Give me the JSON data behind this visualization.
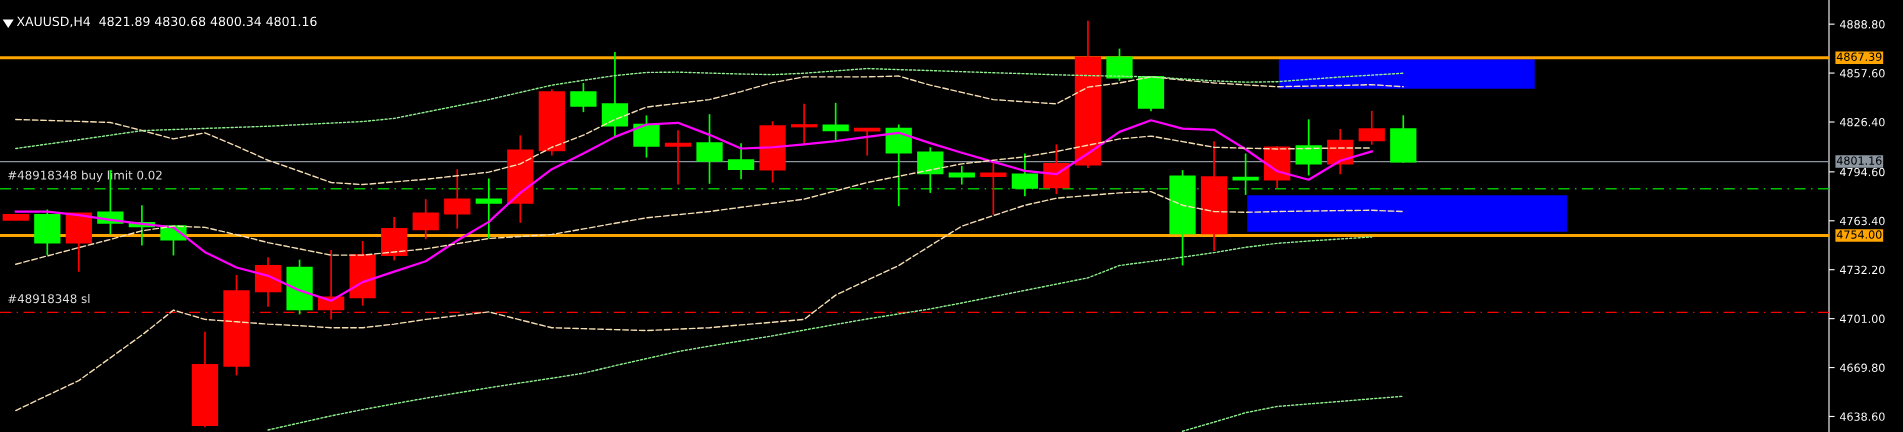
{
  "chart_data": {
    "type": "candlestick",
    "title": "XAUUSD,H4  4821.89 4830.68 4800.34 4801.16",
    "categories": [
      null,
      null,
      null,
      null,
      null,
      null,
      null,
      null,
      null,
      null,
      null,
      null,
      null,
      null,
      null,
      null,
      null,
      null,
      null,
      null,
      null,
      null,
      null,
      null,
      null,
      null,
      null,
      null,
      null,
      null,
      null,
      null,
      null,
      null,
      null,
      null,
      null,
      null,
      null,
      null,
      null,
      null,
      null,
      null,
      null,
      null,
      null,
      null,
      null,
      null,
      null,
      null,
      null,
      null,
      null,
      null,
      null,
      null
    ],
    "ohlc": [
      [
        4764.0,
        4767.2,
        4764.0,
        4767.2
      ],
      [
        4767.2,
        4770.6,
        4741.5,
        4749.5
      ],
      [
        4749.5,
        4768.2,
        4730.9,
        4768.2
      ],
      [
        4768.8,
        4795.7,
        4754.7,
        4762.1
      ],
      [
        4762.1,
        4773.3,
        4747.6,
        4759.8
      ],
      [
        4760.0,
        4760.0,
        4741.3,
        4751.3
      ],
      [
        4633.1,
        4692.6,
        4631.8,
        4671.5
      ],
      [
        4670.9,
        4728.8,
        4664.8,
        4718.5
      ],
      [
        4718.3,
        4740.2,
        4708.5,
        4734.7
      ],
      [
        4733.6,
        4738.6,
        4703.7,
        4706.9
      ],
      [
        4706.9,
        4744.7,
        4700.5,
        4714.6
      ],
      [
        4714.6,
        4750.5,
        4709.3,
        4741.5
      ],
      [
        4741.5,
        4765.8,
        4738.1,
        4758.2
      ],
      [
        4757.9,
        4777.2,
        4751.6,
        4768.2
      ],
      [
        4768.0,
        4796.3,
        4758.4,
        4777.0
      ],
      [
        4777.0,
        4790.4,
        4752.1,
        4774.8
      ],
      [
        4774.8,
        4817.9,
        4762.1,
        4808.4
      ],
      [
        4808.2,
        4847.3,
        4805.0,
        4845.4
      ],
      [
        4845.4,
        4851.3,
        4832.7,
        4836.7
      ],
      [
        4837.8,
        4871.1,
        4816.9,
        4824.0
      ],
      [
        4824.8,
        4830.6,
        4803.7,
        4811.1
      ],
      [
        4811.1,
        4821.1,
        4786.5,
        4812.6
      ],
      [
        4812.9,
        4831.4,
        4787.0,
        4801.5
      ],
      [
        4802.1,
        4812.9,
        4789.9,
        4796.3
      ],
      [
        4796.0,
        4826.9,
        4787.8,
        4823.8
      ],
      [
        4823.5,
        4838.0,
        4812.1,
        4824.5
      ],
      [
        4824.3,
        4838.6,
        4813.7,
        4821.1
      ],
      [
        4820.8,
        4822.2,
        4805.0,
        4822.2
      ],
      [
        4822.2,
        4824.8,
        4772.7,
        4806.8
      ],
      [
        4807.1,
        4810.3,
        4781.2,
        4793.6
      ],
      [
        4793.6,
        4798.4,
        4786.5,
        4791.5
      ],
      [
        4791.8,
        4801.0,
        4767.2,
        4793.6
      ],
      [
        4793.1,
        4806.3,
        4779.1,
        4784.4
      ],
      [
        4784.6,
        4812.1,
        4780.4,
        4799.7
      ],
      [
        4799.2,
        4890.9,
        4797.1,
        4867.6
      ],
      [
        4867.6,
        4873.2,
        4852.6,
        4854.7
      ],
      [
        4855.2,
        4855.2,
        4833.3,
        4835.4
      ],
      [
        4791.8,
        4795.7,
        4734.9,
        4755.3
      ],
      [
        4755.3,
        4814.2,
        4744.2,
        4791.2
      ],
      [
        4791.0,
        4806.3,
        4779.9,
        4789.6
      ],
      [
        4789.6,
        4811.1,
        4784.2,
        4810.3
      ],
      [
        4811.1,
        4828.1,
        4792.3,
        4799.8
      ],
      [
        4799.8,
        4821.9,
        4793.1,
        4814.6
      ],
      [
        4814.6,
        4833.5,
        4811.9,
        4821.9
      ],
      [
        4821.89,
        4830.68,
        4800.34,
        4801.16
      ],
      null,
      null,
      null,
      null,
      null,
      null,
      null,
      null,
      null,
      null,
      null,
      null,
      null
    ],
    "colors": [
      "#ff0000",
      "#00ff00",
      "#ff0000",
      "#00ff00",
      "#00ff00",
      "#00ff00",
      "#ff0000",
      "#ff0000",
      "#ff0000",
      "#00ff00",
      "#ff0000",
      "#ff0000",
      "#ff0000",
      "#ff0000",
      "#ff0000",
      "#00ff00",
      "#ff0000",
      "#ff0000",
      "#00ff00",
      "#00ff00",
      "#00ff00",
      "#ff0000",
      "#00ff00",
      "#00ff00",
      "#ff0000",
      "#ff0000",
      "#00ff00",
      "#ff0000",
      "#00ff00",
      "#00ff00",
      "#00ff00",
      "#ff0000",
      "#00ff00",
      "#ff0000",
      "#ff0000",
      "#00ff00",
      "#00ff00",
      "#00ff00",
      "#ff0000",
      "#00ff00",
      "#ff0000",
      "#00ff00",
      "#ff0000",
      "#ff0000",
      "#00ff00",
      null,
      null,
      null,
      null,
      null,
      null,
      null,
      null,
      null,
      null,
      null,
      null,
      null
    ],
    "series": [
      {
        "type": "line",
        "color": "#ff00ff",
        "line_style": "solid",
        "values": [
          4769.3,
          4769.3,
          4767.0,
          4764.0,
          4761.4,
          4759.2,
          4743.4,
          4733.6,
          4728.3,
          4719.0,
          4712.4,
          4724.3,
          4731.0,
          4737.6,
          4750.8,
          4762.7,
          4781.2,
          4796.3,
          4806.3,
          4816.9,
          4824.8,
          4825.9,
          4818.2,
          4809.5,
          4810.3,
          4812.1,
          4814.2,
          4816.9,
          4819.5,
          4812.9,
          4806.8,
          4801.0,
          4795.2,
          4793.1,
          4806.3,
          4820.1,
          4827.5,
          4822.2,
          4821.4,
          4809.0,
          4795.0,
          4789.6,
          4801.7,
          4807.6,
          null,
          null,
          null,
          null,
          null,
          null,
          null,
          null,
          null,
          null,
          null,
          null,
          null,
          null
        ]
      },
      {
        "type": "line",
        "color": "#f5deb3",
        "line_style": "dashed",
        "values": [
          4828.0,
          4827.4,
          4826.8,
          4826.1,
          4821.0,
          4815.6,
          4819.5,
          4811.0,
          4802.0,
          4795.0,
          4787.8,
          4786.5,
          4788.2,
          4789.9,
          4792.1,
          4794.4,
          4799.7,
          4810.3,
          4818.0,
          4828.0,
          4835.9,
          4838.3,
          4840.7,
          4845.8,
          4851.5,
          4855.2,
          4855.2,
          4855.2,
          4855.7,
          4849.9,
          4845.3,
          4840.7,
          4839.3,
          4838.0,
          4848.6,
          4851.3,
          4855.2,
          4853.2,
          4851.3,
          4850.1,
          4848.9,
          4849.3,
          4849.7,
          4850.2,
          4848.9,
          null,
          null,
          null,
          null,
          null,
          null,
          null,
          null,
          null,
          null,
          null,
          null,
          null
        ]
      },
      {
        "type": "line",
        "color": "#f5deb3",
        "line_style": "dashed",
        "values": [
          4735.7,
          4741.0,
          4746.3,
          4751.5,
          4757.0,
          4760.0,
          4759.2,
          4754.5,
          4749.5,
          4745.5,
          4741.5,
          4741.5,
          4743.5,
          4745.5,
          4748.8,
          4752.1,
          4753.4,
          4754.7,
          4758.2,
          4761.8,
          4765.3,
          4767.3,
          4769.3,
          4772.0,
          4774.6,
          4777.2,
          4782.5,
          4787.8,
          4791.8,
          4795.8,
          4799.7,
          4802.0,
          4804.2,
          4807.6,
          4811.6,
          4815.6,
          4817.4,
          4813.9,
          4810.3,
          4809.7,
          4809.2,
          4809.5,
          4809.8,
          4809.8,
          null,
          null,
          null,
          null,
          null,
          null,
          null,
          null,
          null,
          null,
          null,
          null,
          null,
          null
        ]
      },
      {
        "type": "line",
        "color": "#f5deb3",
        "line_style": "dashed",
        "values": [
          4642.4,
          4652.0,
          4661.5,
          4676.0,
          4690.5,
          4706.4,
          4700.5,
          4699.0,
          4697.5,
          4696.5,
          4695.2,
          4695.2,
          4697.5,
          4700.5,
          4702.9,
          4705.3,
          4700.2,
          4695.2,
          4694.6,
          4694.0,
          4693.4,
          4694.3,
          4695.2,
          4697.0,
          4698.7,
          4700.5,
          4716.0,
          4725.5,
          4734.9,
          4747.5,
          4760.0,
          4766.7,
          4773.3,
          4777.8,
          4779.5,
          4781.2,
          4782.0,
          4773.3,
          4769.3,
          4768.8,
          4769.3,
          4769.6,
          4769.9,
          4770.1,
          4769.3,
          null,
          null,
          null,
          null,
          null,
          null,
          null,
          null,
          null,
          null,
          null,
          null,
          null
        ]
      },
      {
        "type": "line",
        "color": "#90ee90",
        "line_style": "dotted",
        "values": [
          4809.5,
          4812.3,
          4815.1,
          4818.0,
          4820.9,
          4821.6,
          4822.3,
          4823.0,
          4823.7,
          4824.7,
          4825.7,
          4826.7,
          4828.7,
          4832.7,
          4836.7,
          4840.7,
          4845.3,
          4849.9,
          4853.0,
          4856.0,
          4858.0,
          4858.2,
          4857.6,
          4857.0,
          4856.6,
          4857.5,
          4859.0,
          4860.5,
          4859.8,
          4859.2,
          4858.5,
          4857.8,
          4857.2,
          4856.5,
          4856.0,
          4855.6,
          4855.2,
          4853.9,
          4852.6,
          4851.8,
          4852.1,
          4853.6,
          4855.1,
          4856.3,
          4857.5,
          null,
          null,
          null,
          null,
          null,
          null,
          null,
          null,
          null,
          null,
          null,
          null,
          null
        ]
      },
      {
        "type": "line",
        "color": "#90ee90",
        "line_style": "dotted",
        "values": [
          null,
          null,
          null,
          null,
          null,
          null,
          null,
          null,
          4630.0,
          4634.5,
          4639.0,
          4643.0,
          4646.7,
          4650.3,
          4653.6,
          4656.9,
          4660.0,
          4663.0,
          4666.2,
          4671.0,
          4675.5,
          4680.0,
          4683.5,
          4686.8,
          4690.0,
          4693.7,
          4697.3,
          4700.8,
          4704.0,
          4707.2,
          4711.0,
          4715.0,
          4719.0,
          4723.0,
          4727.0,
          4734.9,
          4737.5,
          4740.2,
          4743.1,
          4746.5,
          4749.0,
          4750.5,
          4751.8,
          4753.1,
          null,
          null,
          null,
          null,
          null,
          null,
          null,
          null,
          null,
          null,
          null,
          null,
          null,
          null
        ]
      },
      {
        "type": "line",
        "color": "#90ee90",
        "line_style": "dotted",
        "values": [
          null,
          null,
          null,
          null,
          null,
          null,
          null,
          null,
          null,
          null,
          null,
          null,
          null,
          null,
          null,
          null,
          null,
          null,
          null,
          null,
          null,
          null,
          null,
          null,
          null,
          null,
          null,
          null,
          null,
          null,
          null,
          null,
          null,
          null,
          null,
          null,
          null,
          4629.2,
          4635.0,
          4641.0,
          4645.0,
          4646.6,
          4648.2,
          4649.9,
          4651.5,
          null,
          null,
          null,
          null,
          null,
          null,
          null,
          null,
          null,
          null,
          null,
          null,
          null
        ]
      }
    ],
    "ref_lines": [
      {
        "axis": "y",
        "value": 4867.39,
        "label": "4867.39",
        "color": "#ffa500",
        "line_style": "solid"
      },
      {
        "axis": "y",
        "value": 4754.0,
        "label": "4754.00",
        "color": "#ffa500",
        "line_style": "solid"
      },
      {
        "axis": "y",
        "value": 4801.16,
        "label": "4801.16",
        "color": "#8c96a0",
        "line_style": "solid"
      },
      {
        "axis": "y",
        "value": 4783.8,
        "label": "#48918348 buy limit 0.02",
        "color": "#00c000",
        "line_style": "dashed"
      },
      {
        "axis": "y",
        "value": 4705.0,
        "label": "#48918348 sl",
        "color": "#ff0000",
        "line_style": "dashed"
      }
    ],
    "ylim": [
      4628.7,
      4904.2
    ],
    "yticks": [
      {
        "value": 4888.8,
        "label": "4888.80"
      },
      {
        "value": 4857.6,
        "label": "4857.60"
      },
      {
        "value": 4826.4,
        "label": "4826.40"
      },
      {
        "value": 4794.6,
        "label": "4794.60"
      },
      {
        "value": 4763.4,
        "label": "4763.40"
      },
      {
        "value": 4732.2,
        "label": "4732.20"
      },
      {
        "value": 4701.0,
        "label": "4701.00"
      },
      {
        "value": 4669.8,
        "label": "4669.80"
      },
      {
        "value": 4638.6,
        "label": "4638.60"
      }
    ],
    "tick_labels": "y",
    "grid": false,
    "legend": false
  }
}
